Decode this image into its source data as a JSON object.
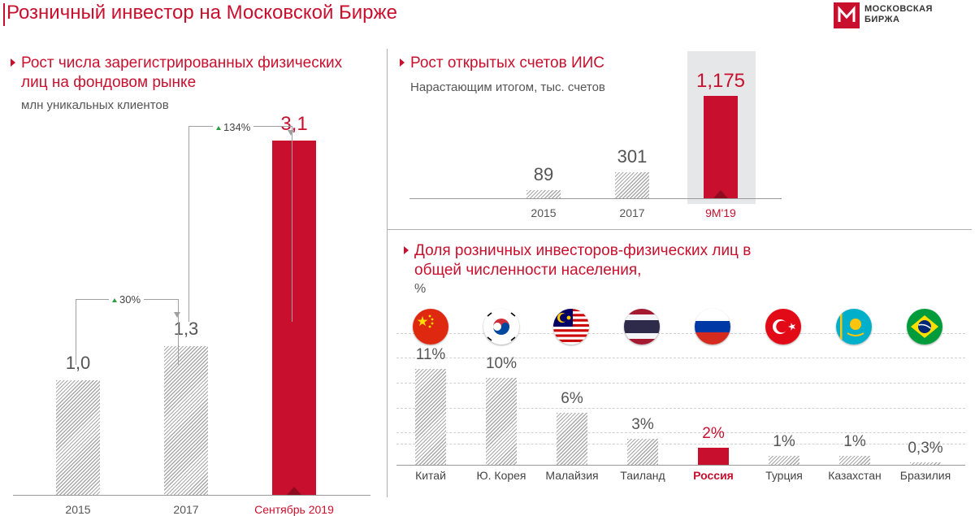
{
  "header": {
    "title": "Розничный инвестор на Московской Бирже",
    "logo_line1": "МОСКОВСКАЯ",
    "logo_line2": "БИРЖА",
    "brand_color": "#c8102e"
  },
  "left_chart": {
    "title_line1": "Рост числа зарегистрированных физических",
    "title_line2": "лиц на фондовом рынке",
    "subtitle": "млн уникальных клиентов",
    "growth_1": "30%",
    "growth_2": "134%"
  },
  "iis_chart": {
    "title": "Рост открытых счетов ИИС",
    "subtitle": "Нарастающим итогом, тыс. счетов"
  },
  "share_chart": {
    "title_line1": "Доля розничных инвесторов-физических лиц в",
    "title_line2": "общей численности населения,",
    "unit": "%"
  },
  "flags": [
    "china-flag",
    "south-korea-flag",
    "malaysia-flag",
    "thailand-flag",
    "russia-flag",
    "turkey-flag",
    "kazakhstan-flag",
    "brazil-flag"
  ],
  "chart_data": [
    {
      "type": "bar",
      "categories": [
        "2015",
        "2017",
        "Сентябрь 2019"
      ],
      "values": [
        1.0,
        1.3,
        3.1
      ],
      "labels": [
        "1,0",
        "1,3",
        "3,1"
      ],
      "ylim": [
        0,
        3.1
      ],
      "highlight": "Сентябрь 2019"
    },
    {
      "type": "bar",
      "categories": [
        "2015",
        "2017",
        "9M'19"
      ],
      "values": [
        89,
        301,
        1175
      ],
      "labels": [
        "89",
        "301",
        "1,175"
      ],
      "ylim": [
        0,
        1175
      ],
      "highlight": "9M'19"
    },
    {
      "type": "bar",
      "categories": [
        "Китай",
        "Ю. Корея",
        "Малайзия",
        "Таиланд",
        "Россия",
        "Турция",
        "Казахстан",
        "Бразилия"
      ],
      "values": [
        11,
        10,
        6,
        3,
        2,
        1,
        1,
        0.3
      ],
      "labels": [
        "11%",
        "10%",
        "6%",
        "3%",
        "2%",
        "1%",
        "1%",
        "0,3%"
      ],
      "ylim": [
        0,
        11
      ],
      "highlight": "Россия"
    }
  ]
}
